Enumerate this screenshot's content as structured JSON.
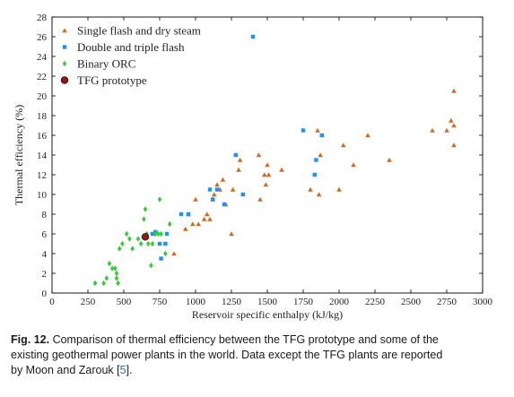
{
  "chart_data": {
    "type": "scatter",
    "xlabel": "Reservoir specific enthalpy (kJ/kg)",
    "ylabel": "Thermal efficiency (%)",
    "xlim": [
      0,
      3000
    ],
    "ylim": [
      0,
      28
    ],
    "xticks": [
      0,
      250,
      500,
      750,
      1000,
      1250,
      1500,
      1750,
      2000,
      2250,
      2500,
      2750,
      3000
    ],
    "yticks": [
      0,
      2,
      4,
      6,
      8,
      10,
      12,
      14,
      16,
      18,
      20,
      22,
      24,
      26,
      28
    ],
    "grid": false,
    "legend_position": "top-left",
    "series": [
      {
        "name": "Single flash and dry steam",
        "marker": "triangle",
        "color": "#d2691e",
        "points": [
          [
            850,
            4
          ],
          [
            930,
            6.5
          ],
          [
            950,
            8
          ],
          [
            980,
            7
          ],
          [
            1000,
            9.5
          ],
          [
            1020,
            7
          ],
          [
            1060,
            7.5
          ],
          [
            1080,
            8
          ],
          [
            1100,
            7.5
          ],
          [
            1120,
            9.5
          ],
          [
            1130,
            10
          ],
          [
            1150,
            11
          ],
          [
            1170,
            10.5
          ],
          [
            1190,
            11.5
          ],
          [
            1210,
            9
          ],
          [
            1250,
            6
          ],
          [
            1260,
            10.5
          ],
          [
            1300,
            12.5
          ],
          [
            1310,
            13.5
          ],
          [
            1440,
            14
          ],
          [
            1450,
            9.5
          ],
          [
            1480,
            12
          ],
          [
            1490,
            11
          ],
          [
            1500,
            13
          ],
          [
            1510,
            12
          ],
          [
            1600,
            12.5
          ],
          [
            1800,
            10.5
          ],
          [
            1850,
            16.5
          ],
          [
            1860,
            10
          ],
          [
            1870,
            14
          ],
          [
            2000,
            10.5
          ],
          [
            2030,
            15
          ],
          [
            2100,
            13
          ],
          [
            2200,
            16
          ],
          [
            2350,
            13.5
          ],
          [
            2650,
            16.5
          ],
          [
            2750,
            16.5
          ],
          [
            2780,
            17.5
          ],
          [
            2800,
            20.5
          ],
          [
            2800,
            17
          ],
          [
            2800,
            15
          ]
        ]
      },
      {
        "name": "Double and triple flash",
        "marker": "square",
        "color": "#1e90ff",
        "points": [
          [
            700,
            6
          ],
          [
            720,
            6.2
          ],
          [
            750,
            5
          ],
          [
            760,
            3.5
          ],
          [
            790,
            5
          ],
          [
            800,
            6
          ],
          [
            900,
            8
          ],
          [
            950,
            8
          ],
          [
            1100,
            10.5
          ],
          [
            1120,
            9.5
          ],
          [
            1150,
            10.5
          ],
          [
            1200,
            9
          ],
          [
            1280,
            14
          ],
          [
            1330,
            10
          ],
          [
            1400,
            26
          ],
          [
            1750,
            16.5
          ],
          [
            1830,
            12
          ],
          [
            1840,
            13.5
          ],
          [
            1880,
            16
          ]
        ]
      },
      {
        "name": "Binary ORC",
        "marker": "diamond",
        "color": "#32cd32",
        "points": [
          [
            300,
            1
          ],
          [
            360,
            1
          ],
          [
            380,
            1.5
          ],
          [
            400,
            3
          ],
          [
            420,
            2.5
          ],
          [
            440,
            2.5
          ],
          [
            450,
            1.5
          ],
          [
            450,
            2
          ],
          [
            460,
            1
          ],
          [
            470,
            4.5
          ],
          [
            490,
            5
          ],
          [
            520,
            6
          ],
          [
            540,
            5.5
          ],
          [
            560,
            4.5
          ],
          [
            600,
            5.5
          ],
          [
            620,
            5
          ],
          [
            640,
            7.5
          ],
          [
            650,
            8.5
          ],
          [
            660,
            6
          ],
          [
            670,
            5
          ],
          [
            690,
            2.8
          ],
          [
            700,
            5
          ],
          [
            720,
            6
          ],
          [
            740,
            6
          ],
          [
            750,
            9.5
          ],
          [
            760,
            6
          ],
          [
            790,
            4
          ],
          [
            820,
            7
          ]
        ]
      },
      {
        "name": "TFG prototype",
        "marker": "circle",
        "color": "#8b1a1a",
        "points": [
          [
            650,
            5.7
          ]
        ]
      }
    ]
  },
  "caption": {
    "label": "Fig. 12.",
    "line1": "Comparison of thermal efficiency between the TFG prototype and some of the",
    "line2": "existing geothermal power plants in the world. Data except the TFG plants are reported",
    "line3_prefix": "by Moon and Zarouk [",
    "line3_ref": "5",
    "line3_suffix": "]."
  }
}
